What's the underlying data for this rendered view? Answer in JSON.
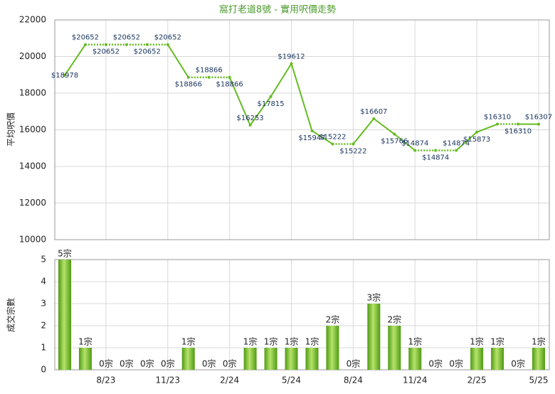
{
  "chart_data": [
    {
      "type": "line",
      "title": "窩打老道8號 - 實用呎價走勢",
      "y_label": "平均呎價",
      "color": "#66bb22",
      "values": [
        18978,
        20652,
        20652,
        20652,
        20652,
        20652,
        18866,
        18866,
        18866,
        16253,
        17815,
        19612,
        15947,
        15222,
        15222,
        16607,
        15766,
        14874,
        14874,
        14874,
        15873,
        16310,
        16310,
        16307
      ],
      "value_labels": [
        "$18978",
        "$20652",
        "$20652",
        "$20652",
        "$20652",
        "$20652",
        "$18866",
        "$18866",
        "$18866",
        "$16253",
        "$17815",
        "$19612",
        "$15947",
        "$15222",
        "$15222",
        "$16607",
        "$15766",
        "$14874",
        "$14874",
        "$14874",
        "$15873",
        "$16310",
        "$16310",
        "$16307"
      ],
      "ylim": [
        10000,
        22000
      ],
      "yticks": [
        10000,
        12000,
        14000,
        16000,
        18000,
        20000,
        22000
      ],
      "grid": true
    },
    {
      "type": "bar",
      "y_label": "成交宗數",
      "color": "#66bb22",
      "categories": [
        null,
        null,
        "8/23",
        null,
        null,
        "11/23",
        null,
        null,
        "2/24",
        null,
        null,
        "5/24",
        null,
        null,
        "8/24",
        null,
        null,
        "11/24",
        null,
        null,
        "2/25",
        null,
        null,
        "5/25"
      ],
      "values": [
        5,
        1,
        0,
        0,
        0,
        0,
        1,
        0,
        0,
        1,
        1,
        1,
        1,
        2,
        0,
        3,
        2,
        1,
        0,
        0,
        1,
        1,
        0,
        1
      ],
      "value_labels": [
        "5宗",
        "1宗",
        "0宗",
        "0宗",
        "0宗",
        "0宗",
        "1宗",
        "0宗",
        "0宗",
        "1宗",
        "1宗",
        "1宗",
        "1宗",
        "2宗",
        "0宗",
        "3宗",
        "2宗",
        "1宗",
        "0宗",
        "0宗",
        "1宗",
        "1宗",
        "0宗",
        "1宗"
      ],
      "ylim": [
        0,
        5
      ],
      "yticks": [
        0,
        1,
        2,
        3,
        4,
        5
      ],
      "grid": true
    }
  ]
}
